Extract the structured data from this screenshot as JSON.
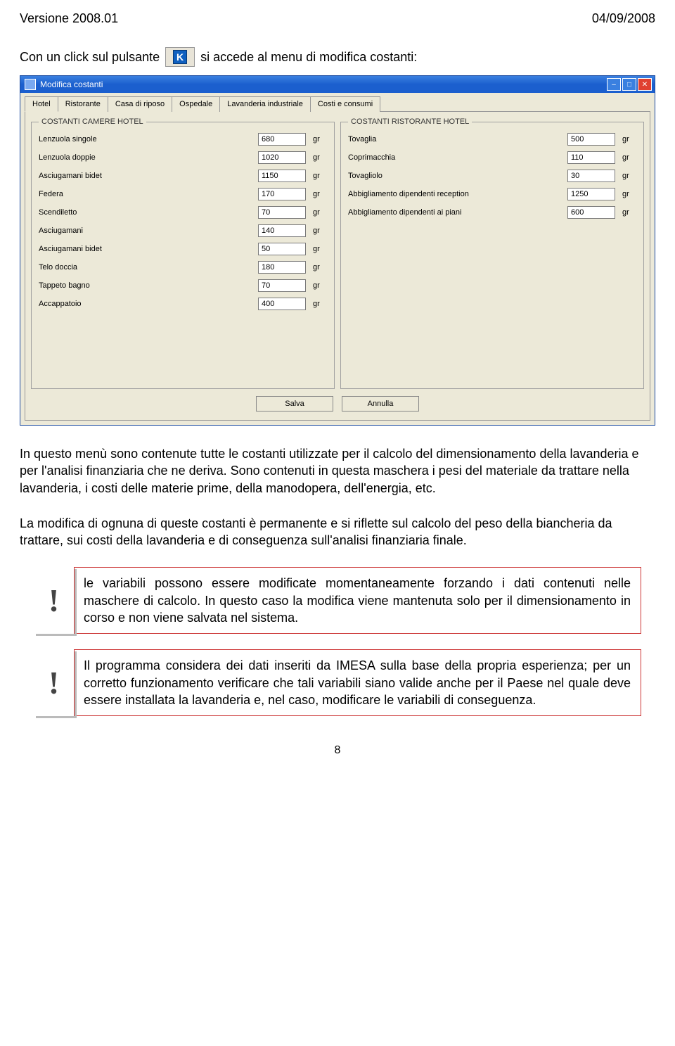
{
  "header": {
    "version": "Versione 2008.01",
    "date": "04/09/2008"
  },
  "intro": {
    "before": "Con un click sul pulsante",
    "after": "si accede al menu di modifica costanti:",
    "k_label": "K"
  },
  "window": {
    "title": "Modifica costanti",
    "tabs": [
      "Hotel",
      "Ristorante",
      "Casa di riposo",
      "Ospedale",
      "Lavanderia industriale",
      "Costi e consumi"
    ],
    "left_legend": "COSTANTI CAMERE HOTEL",
    "right_legend": "COSTANTI RISTORANTE HOTEL",
    "unit": "gr",
    "left_rows": [
      {
        "label": "Lenzuola singole",
        "value": "680"
      },
      {
        "label": "Lenzuola doppie",
        "value": "1020"
      },
      {
        "label": "Asciugamani bidet",
        "value": "1150"
      },
      {
        "label": "Federa",
        "value": "170"
      },
      {
        "label": "Scendiletto",
        "value": "70"
      },
      {
        "label": "Asciugamani",
        "value": "140"
      },
      {
        "label": "Asciugamani bidet",
        "value": "50"
      },
      {
        "label": "Telo doccia",
        "value": "180"
      },
      {
        "label": "Tappeto bagno",
        "value": "70"
      },
      {
        "label": "Accappatoio",
        "value": "400"
      }
    ],
    "right_rows": [
      {
        "label": "Tovaglia",
        "value": "500"
      },
      {
        "label": "Coprimacchia",
        "value": "110"
      },
      {
        "label": "Tovagliolo",
        "value": "30"
      },
      {
        "label": "Abbigliamento dipendenti reception",
        "value": "1250"
      },
      {
        "label": "Abbigliamento dipendenti ai piani",
        "value": "600"
      }
    ],
    "buttons": {
      "save": "Salva",
      "cancel": "Annulla"
    }
  },
  "paragraphs": {
    "p1": "In questo menù sono contenute tutte le costanti utilizzate per il calcolo del dimensionamento della lavanderia e per l'analisi finanziaria che ne deriva. Sono contenuti in questa maschera i pesi del materiale da trattare nella lavanderia, i costi delle materie prime, della manodopera, dell'energia, etc.",
    "p2": "La modifica di ognuna di queste costanti è permanente e si riflette sul calcolo del peso della biancheria da trattare, sui costi della lavanderia e di conseguenza sull'analisi finanziaria finale."
  },
  "callouts": {
    "bang": "!",
    "c1": "le variabili possono essere modificate momentaneamente forzando i dati contenuti nelle maschere di calcolo. In questo caso la modifica viene mantenuta solo per il dimensionamento in corso e non viene salvata nel sistema.",
    "c2": "Il programma considera dei dati inseriti da IMESA sulla base della propria esperienza; per un corretto funzionamento verificare che tali variabili siano valide anche per il Paese nel quale deve essere installata la lavanderia e, nel caso, modificare le variabili di conseguenza."
  },
  "page_number": "8"
}
